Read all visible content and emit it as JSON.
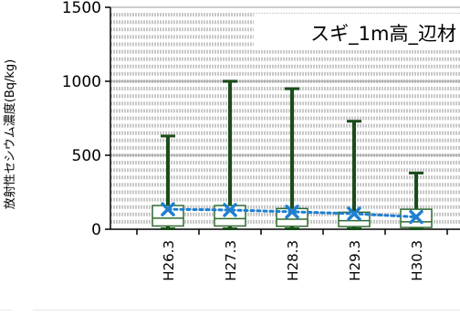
{
  "chart_data": {
    "type": "box",
    "title": "スギ_1m高_辺材",
    "xlabel": "",
    "ylabel": "放射性セシウム濃度(Bq/kg)",
    "ylim": [
      0,
      1500
    ],
    "yticks": [
      0,
      500,
      1000,
      1500
    ],
    "grid": true,
    "categories": [
      "H26.3",
      "H27.3",
      "H28.3",
      "H29.3",
      "H30.3"
    ],
    "series": [
      {
        "stats": [
          {
            "min": 3,
            "q1": 22,
            "median": 75,
            "q3": 160,
            "max": 630
          },
          {
            "min": 3,
            "q1": 22,
            "median": 72,
            "q3": 160,
            "max": 1000
          },
          {
            "min": 3,
            "q1": 20,
            "median": 68,
            "q3": 140,
            "max": 950
          },
          {
            "min": 3,
            "q1": 18,
            "median": 58,
            "q3": 115,
            "max": 730
          },
          {
            "min": 3,
            "q1": 12,
            "median": 50,
            "q3": 135,
            "max": 380
          }
        ],
        "means": [
          135,
          130,
          118,
          105,
          83
        ]
      }
    ],
    "colors": {
      "box_stroke": "#2e6b2e",
      "whisker": "#1b4d1b",
      "mean_marker": "#1f7fd0",
      "mean_line": "#1f7fd0",
      "grid": "#c8c8c8"
    }
  }
}
